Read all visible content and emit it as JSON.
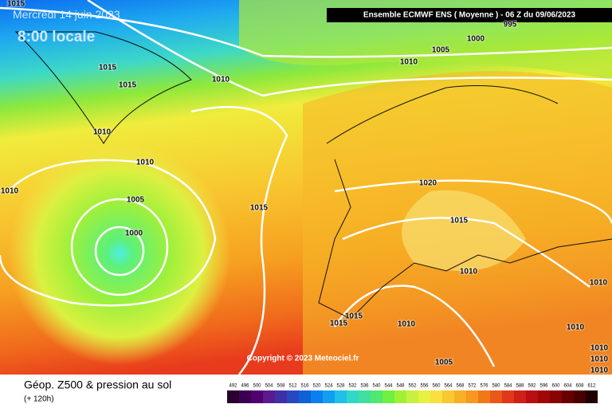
{
  "header": {
    "date": "Mercredi 14 juin 2023",
    "time": "8:00 locale",
    "model": "Ensemble ECMWF ENS  ( Moyenne )  - 06 Z du 09/06/2023"
  },
  "isobar_labels": [
    "1015",
    "995",
    "1000",
    "1005",
    "1010",
    "1015",
    "1010",
    "1015",
    "1010",
    "1010",
    "1010",
    "1020",
    "1005",
    "1015",
    "1015",
    "1000",
    "1010",
    "1010",
    "1015",
    "1015",
    "1010",
    "1010",
    "1005",
    "1010",
    "1010",
    "1010"
  ],
  "copyright": "Copyright © 2023 Meteociel.fr",
  "footer": {
    "title": "Géop. Z500 & pression au sol",
    "lead": "(+ 120h)"
  },
  "scale": {
    "labels": [
      "492",
      "496",
      "500",
      "504",
      "508",
      "512",
      "516",
      "520",
      "524",
      "528",
      "532",
      "536",
      "540",
      "544",
      "548",
      "552",
      "556",
      "560",
      "564",
      "568",
      "572",
      "576",
      "580",
      "584",
      "588",
      "592",
      "596",
      "600",
      "604",
      "608",
      "612"
    ]
  }
}
